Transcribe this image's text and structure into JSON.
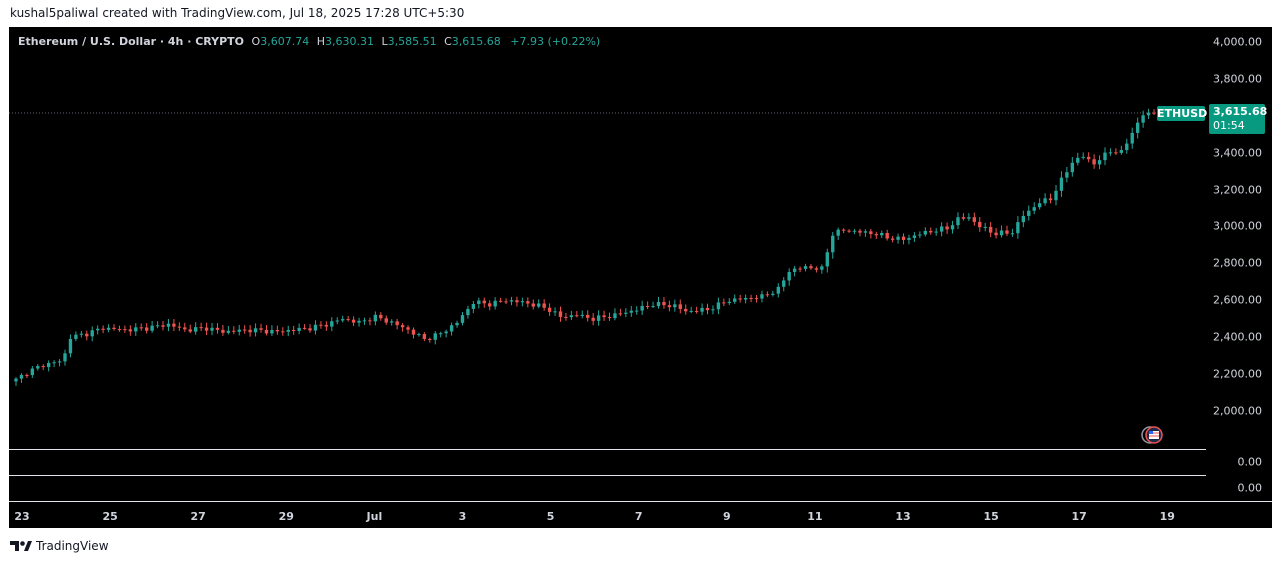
{
  "header": {
    "credit": "kushal5paliwal created with TradingView.com, Jul 18, 2025 17:28 UTC+5:30"
  },
  "legend": {
    "symbol": "Ethereum / U.S. Dollar · 4h · CRYPTO",
    "o_label": "O",
    "o_value": "3,607.74",
    "h_label": "H",
    "h_value": "3,630.31",
    "l_label": "L",
    "l_value": "3,585.51",
    "c_label": "C",
    "c_value": "3,615.68",
    "change": "+7.93 (+0.22%)"
  },
  "last_price": {
    "symbol_tag": "ETHUSD",
    "price": "3,615.68",
    "countdown": "01:54"
  },
  "indicator_panes": [
    {
      "value": "0.00"
    },
    {
      "value": "0.00"
    }
  ],
  "footer": {
    "brand": "TradingView"
  },
  "colors": {
    "up": "#26a69a",
    "down": "#ef5350",
    "background": "#000000",
    "axis_text": "#d1d4dc"
  },
  "chart_data": {
    "type": "candlestick",
    "symbol": "Ethereum / U.S. Dollar",
    "interval": "4h",
    "exchange": "CRYPTO",
    "y_ticks": [
      "4,000.00",
      "3,800.00",
      "3,600.00",
      "3,400.00",
      "3,200.00",
      "3,000.00",
      "2,800.00",
      "2,600.00",
      "2,400.00",
      "2,200.00",
      "2,000.00"
    ],
    "y_tick_values": [
      4000,
      3800,
      3600,
      3400,
      3200,
      3000,
      2800,
      2600,
      2400,
      2200,
      2000
    ],
    "ylim": [
      1795,
      4080
    ],
    "x_ticks": [
      "23",
      "25",
      "27",
      "29",
      "Jul",
      "3",
      "5",
      "7",
      "9",
      "11",
      "13",
      "15",
      "17",
      "19"
    ],
    "grid": false,
    "current_price": 3615.68,
    "anchors": [
      [
        0,
        2170
      ],
      [
        2,
        2210
      ],
      [
        5,
        2250
      ],
      [
        8,
        2270
      ],
      [
        9,
        2310
      ],
      [
        10,
        2400
      ],
      [
        13,
        2420
      ],
      [
        16,
        2450
      ],
      [
        20,
        2440
      ],
      [
        24,
        2450
      ],
      [
        28,
        2470
      ],
      [
        31,
        2440
      ],
      [
        35,
        2450
      ],
      [
        38,
        2430
      ],
      [
        43,
        2440
      ],
      [
        48,
        2430
      ],
      [
        54,
        2450
      ],
      [
        57,
        2470
      ],
      [
        60,
        2500
      ],
      [
        63,
        2480
      ],
      [
        66,
        2510
      ],
      [
        69,
        2480
      ],
      [
        72,
        2440
      ],
      [
        75,
        2390
      ],
      [
        78,
        2420
      ],
      [
        81,
        2480
      ],
      [
        84,
        2590
      ],
      [
        87,
        2580
      ],
      [
        90,
        2600
      ],
      [
        93,
        2590
      ],
      [
        96,
        2570
      ],
      [
        98,
        2550
      ],
      [
        100,
        2510
      ],
      [
        103,
        2520
      ],
      [
        106,
        2500
      ],
      [
        110,
        2520
      ],
      [
        114,
        2550
      ],
      [
        117,
        2580
      ],
      [
        121,
        2570
      ],
      [
        123,
        2540
      ],
      [
        127,
        2550
      ],
      [
        131,
        2600
      ],
      [
        134,
        2610
      ],
      [
        137,
        2620
      ],
      [
        140,
        2660
      ],
      [
        142,
        2760
      ],
      [
        145,
        2780
      ],
      [
        148,
        2770
      ],
      [
        150,
        2960
      ],
      [
        152,
        2980
      ],
      [
        155,
        2970
      ],
      [
        158,
        2960
      ],
      [
        160,
        2940
      ],
      [
        163,
        2930
      ],
      [
        166,
        2960
      ],
      [
        169,
        2980
      ],
      [
        171,
        2990
      ],
      [
        173,
        3040
      ],
      [
        175,
        3050
      ],
      [
        177,
        3000
      ],
      [
        180,
        2960
      ],
      [
        183,
        2970
      ],
      [
        185,
        3060
      ],
      [
        188,
        3130
      ],
      [
        190,
        3150
      ],
      [
        192,
        3250
      ],
      [
        194,
        3350
      ],
      [
        196,
        3380
      ],
      [
        198,
        3340
      ],
      [
        201,
        3410
      ],
      [
        203,
        3400
      ],
      [
        205,
        3510
      ],
      [
        207,
        3605
      ],
      [
        209,
        3615.68
      ]
    ]
  }
}
